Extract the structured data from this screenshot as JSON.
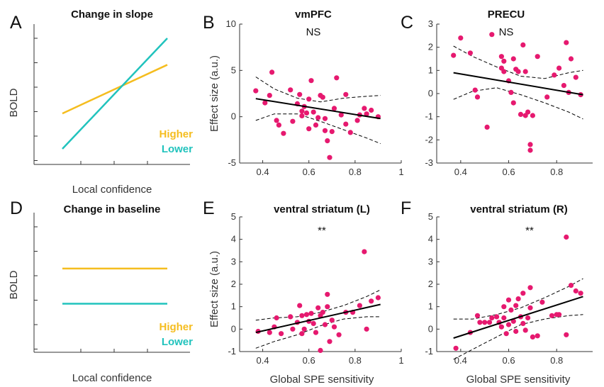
{
  "colors": {
    "higher": "#f5bd1f",
    "lower": "#21c3bd",
    "points": "#e6196f",
    "fit": "#000000",
    "axis": "#333333"
  },
  "chart_data": [
    {
      "panel": "A",
      "type": "line",
      "title": "Change in slope",
      "xlabel": "Local confidence",
      "ylabel": "BOLD",
      "series": [
        {
          "name": "Higher",
          "color": "#f5bd1f",
          "x": [
            0,
            1
          ],
          "y": [
            0.32,
            0.76
          ]
        },
        {
          "name": "Lower",
          "color": "#21c3bd",
          "x": [
            0,
            1
          ],
          "y": [
            0.0,
            1.0
          ]
        }
      ]
    },
    {
      "panel": "B",
      "type": "scatter",
      "title": "vmPFC",
      "annotation": "NS",
      "xlabel": "",
      "ylabel": "Effect size (a.u.)",
      "xlim": [
        0.3,
        1.0
      ],
      "ylim": [
        -5,
        10
      ],
      "xticks": [
        "0.4",
        "0.6",
        "0.8",
        "1"
      ],
      "yticks": [
        "-5",
        "0",
        "5",
        "10"
      ],
      "points": [
        [
          0.37,
          2.8
        ],
        [
          0.41,
          1.5
        ],
        [
          0.43,
          2.3
        ],
        [
          0.44,
          4.8
        ],
        [
          0.46,
          -0.4
        ],
        [
          0.47,
          -0.9
        ],
        [
          0.49,
          -1.8
        ],
        [
          0.52,
          2.9
        ],
        [
          0.53,
          -0.5
        ],
        [
          0.55,
          1.4
        ],
        [
          0.56,
          2.4
        ],
        [
          0.57,
          0.6
        ],
        [
          0.57,
          0.1
        ],
        [
          0.58,
          1.1
        ],
        [
          0.59,
          0.4
        ],
        [
          0.6,
          -1.3
        ],
        [
          0.6,
          1.9
        ],
        [
          0.61,
          3.9
        ],
        [
          0.62,
          0.5
        ],
        [
          0.63,
          -0.9
        ],
        [
          0.64,
          -0.1
        ],
        [
          0.65,
          2.3
        ],
        [
          0.66,
          2.1
        ],
        [
          0.67,
          -1.5
        ],
        [
          0.67,
          -0.2
        ],
        [
          0.68,
          -2.6
        ],
        [
          0.69,
          -4.4
        ],
        [
          0.7,
          -1.6
        ],
        [
          0.71,
          0.9
        ],
        [
          0.72,
          4.2
        ],
        [
          0.74,
          0.2
        ],
        [
          0.76,
          2.4
        ],
        [
          0.76,
          -0.8
        ],
        [
          0.78,
          -1.7
        ],
        [
          0.81,
          -0.4
        ],
        [
          0.82,
          0.2
        ],
        [
          0.84,
          0.9
        ],
        [
          0.85,
          0.3
        ],
        [
          0.87,
          0.7
        ],
        [
          0.9,
          0.0
        ]
      ],
      "fit": {
        "x": [
          0.37,
          0.91
        ],
        "y": [
          1.95,
          -0.2
        ]
      },
      "ci_upper": {
        "x": [
          0.37,
          0.45,
          0.55,
          0.65,
          0.75,
          0.85,
          0.91
        ],
        "y": [
          4.3,
          3.0,
          2.0,
          1.6,
          2.0,
          2.2,
          2.3
        ]
      },
      "ci_lower": {
        "x": [
          0.37,
          0.45,
          0.55,
          0.65,
          0.75,
          0.85,
          0.91
        ],
        "y": [
          -0.4,
          0.3,
          0.3,
          -0.5,
          -1.4,
          -2.3,
          -2.9
        ]
      }
    },
    {
      "panel": "C",
      "type": "scatter",
      "title": "PRECU",
      "annotation": "NS",
      "xlabel": "",
      "ylabel": "",
      "xlim": [
        0.3,
        0.95
      ],
      "ylim": [
        -3,
        3
      ],
      "xticks": [
        "0.4",
        "0.6",
        "0.8"
      ],
      "yticks": [
        "-3",
        "-2",
        "-1",
        "0",
        "1",
        "2",
        "3"
      ],
      "points": [
        [
          0.37,
          1.65
        ],
        [
          0.4,
          2.4
        ],
        [
          0.44,
          1.75
        ],
        [
          0.46,
          0.15
        ],
        [
          0.47,
          -0.15
        ],
        [
          0.51,
          -1.45
        ],
        [
          0.53,
          2.55
        ],
        [
          0.57,
          1.6
        ],
        [
          0.57,
          1.1
        ],
        [
          0.58,
          0.95
        ],
        [
          0.58,
          1.4
        ],
        [
          0.6,
          0.55
        ],
        [
          0.61,
          0.05
        ],
        [
          0.62,
          1.5
        ],
        [
          0.62,
          -0.4
        ],
        [
          0.63,
          1.05
        ],
        [
          0.64,
          0.95
        ],
        [
          0.65,
          -0.9
        ],
        [
          0.66,
          2.1
        ],
        [
          0.67,
          -0.95
        ],
        [
          0.67,
          0.95
        ],
        [
          0.68,
          -0.8
        ],
        [
          0.69,
          -2.2
        ],
        [
          0.69,
          -2.45
        ],
        [
          0.7,
          -0.95
        ],
        [
          0.72,
          1.6
        ],
        [
          0.76,
          -0.15
        ],
        [
          0.79,
          0.8
        ],
        [
          0.81,
          1.1
        ],
        [
          0.83,
          0.35
        ],
        [
          0.84,
          2.2
        ],
        [
          0.85,
          0.05
        ],
        [
          0.86,
          1.5
        ],
        [
          0.88,
          0.7
        ],
        [
          0.9,
          -0.05
        ]
      ],
      "fit": {
        "x": [
          0.37,
          0.91
        ],
        "y": [
          0.9,
          -0.05
        ]
      },
      "ci_upper": {
        "x": [
          0.37,
          0.45,
          0.55,
          0.65,
          0.75,
          0.85,
          0.91
        ],
        "y": [
          2.05,
          1.6,
          1.15,
          0.75,
          0.65,
          0.9,
          1.0
        ]
      },
      "ci_lower": {
        "x": [
          0.37,
          0.45,
          0.55,
          0.65,
          0.75,
          0.85,
          0.91
        ],
        "y": [
          -0.25,
          0.1,
          0.25,
          -0.05,
          -0.4,
          -0.8,
          -1.1
        ]
      }
    },
    {
      "panel": "D",
      "type": "line",
      "title": "Change in baseline",
      "xlabel": "Local confidence",
      "ylabel": "BOLD",
      "series": [
        {
          "name": "Higher",
          "color": "#f5bd1f",
          "x": [
            0,
            1
          ],
          "y": [
            0.62,
            0.62
          ]
        },
        {
          "name": "Lower",
          "color": "#21c3bd",
          "x": [
            0,
            1
          ],
          "y": [
            0.3,
            0.3
          ]
        }
      ]
    },
    {
      "panel": "E",
      "type": "scatter",
      "title": "ventral striatum (L)",
      "annotation": "**",
      "xlabel": "Global SPE sensitivity",
      "ylabel": "Effect size (a.u.)",
      "xlim": [
        0.3,
        1.0
      ],
      "ylim": [
        -1,
        5
      ],
      "xticks": [
        "0.4",
        "0.6",
        "0.8",
        "1"
      ],
      "yticks": [
        "-1",
        "0",
        "1",
        "2",
        "3",
        "4",
        "5"
      ],
      "points": [
        [
          0.38,
          -0.1
        ],
        [
          0.43,
          -0.15
        ],
        [
          0.45,
          0.1
        ],
        [
          0.46,
          0.5
        ],
        [
          0.48,
          -0.2
        ],
        [
          0.52,
          0.55
        ],
        [
          0.53,
          0.0
        ],
        [
          0.55,
          0.3
        ],
        [
          0.56,
          1.05
        ],
        [
          0.57,
          0.6
        ],
        [
          0.57,
          -0.2
        ],
        [
          0.58,
          0.0
        ],
        [
          0.59,
          0.65
        ],
        [
          0.6,
          0.35
        ],
        [
          0.61,
          0.7
        ],
        [
          0.62,
          0.25
        ],
        [
          0.63,
          -0.15
        ],
        [
          0.64,
          0.95
        ],
        [
          0.65,
          0.6
        ],
        [
          0.65,
          -0.95
        ],
        [
          0.66,
          0.75
        ],
        [
          0.67,
          0.2
        ],
        [
          0.68,
          1.55
        ],
        [
          0.68,
          1.0
        ],
        [
          0.69,
          -0.55
        ],
        [
          0.7,
          0.4
        ],
        [
          0.71,
          0.1
        ],
        [
          0.73,
          -0.25
        ],
        [
          0.76,
          0.75
        ],
        [
          0.79,
          0.75
        ],
        [
          0.82,
          1.05
        ],
        [
          0.84,
          3.45
        ],
        [
          0.85,
          0.0
        ],
        [
          0.87,
          1.25
        ],
        [
          0.9,
          1.4
        ]
      ],
      "fit": {
        "x": [
          0.37,
          0.91
        ],
        "y": [
          -0.15,
          1.1
        ]
      },
      "ci_upper": {
        "x": [
          0.37,
          0.45,
          0.55,
          0.65,
          0.75,
          0.85,
          0.91
        ],
        "y": [
          0.4,
          0.5,
          0.55,
          0.75,
          1.05,
          1.45,
          1.75
        ]
      },
      "ci_lower": {
        "x": [
          0.37,
          0.45,
          0.55,
          0.65,
          0.75,
          0.85,
          0.91
        ],
        "y": [
          -0.85,
          -0.55,
          -0.25,
          0.15,
          0.45,
          0.55,
          0.55
        ]
      }
    },
    {
      "panel": "F",
      "type": "scatter",
      "title": "ventral striatum (R)",
      "annotation": "**",
      "xlabel": "Global SPE sensitivity",
      "ylabel": "",
      "xlim": [
        0.3,
        0.95
      ],
      "ylim": [
        -1,
        5
      ],
      "xticks": [
        "0.4",
        "0.6",
        "0.8"
      ],
      "yticks": [
        "-1",
        "0",
        "1",
        "2",
        "3",
        "4",
        "5"
      ],
      "points": [
        [
          0.38,
          -0.85
        ],
        [
          0.44,
          -0.15
        ],
        [
          0.47,
          0.6
        ],
        [
          0.48,
          0.3
        ],
        [
          0.5,
          0.3
        ],
        [
          0.52,
          0.3
        ],
        [
          0.53,
          0.5
        ],
        [
          0.55,
          0.55
        ],
        [
          0.56,
          0.3
        ],
        [
          0.57,
          0.1
        ],
        [
          0.58,
          1.0
        ],
        [
          0.58,
          0.5
        ],
        [
          0.59,
          -0.2
        ],
        [
          0.6,
          0.2
        ],
        [
          0.6,
          1.3
        ],
        [
          0.61,
          0.85
        ],
        [
          0.62,
          0.35
        ],
        [
          0.63,
          1.05
        ],
        [
          0.63,
          -0.1
        ],
        [
          0.64,
          1.35
        ],
        [
          0.65,
          0.55
        ],
        [
          0.66,
          0.25
        ],
        [
          0.66,
          1.6
        ],
        [
          0.67,
          -0.05
        ],
        [
          0.68,
          0.5
        ],
        [
          0.69,
          1.85
        ],
        [
          0.69,
          0.95
        ],
        [
          0.7,
          -0.35
        ],
        [
          0.72,
          -0.3
        ],
        [
          0.74,
          1.2
        ],
        [
          0.78,
          0.6
        ],
        [
          0.8,
          0.65
        ],
        [
          0.81,
          0.65
        ],
        [
          0.84,
          4.1
        ],
        [
          0.84,
          -0.25
        ],
        [
          0.86,
          1.95
        ],
        [
          0.88,
          1.7
        ],
        [
          0.9,
          1.6
        ]
      ],
      "fit": {
        "x": [
          0.37,
          0.91
        ],
        "y": [
          -0.4,
          1.45
        ]
      },
      "ci_upper": {
        "x": [
          0.37,
          0.45,
          0.55,
          0.65,
          0.75,
          0.85,
          0.91
        ],
        "y": [
          0.45,
          0.45,
          0.65,
          0.95,
          1.4,
          1.9,
          2.25
        ]
      },
      "ci_lower": {
        "x": [
          0.37,
          0.45,
          0.55,
          0.65,
          0.75,
          0.85,
          0.91
        ],
        "y": [
          -1.35,
          -0.9,
          -0.35,
          0.2,
          0.45,
          0.6,
          0.65
        ]
      }
    }
  ]
}
